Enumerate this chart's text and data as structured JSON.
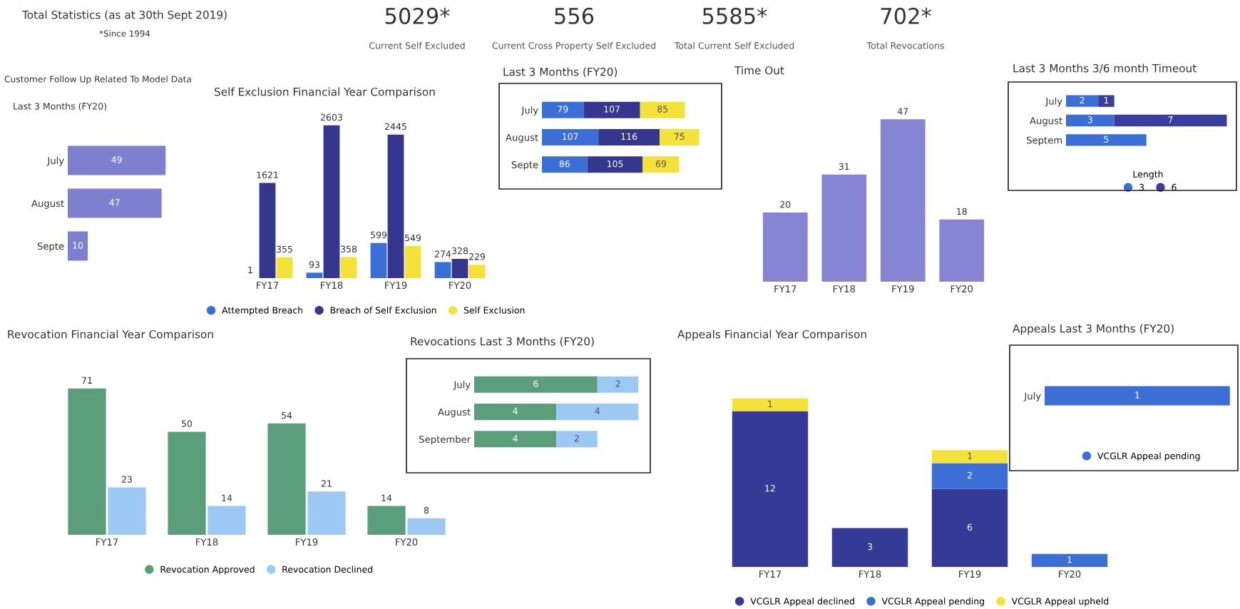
{
  "chart_data": [
    {
      "type": "other",
      "title": "Total Statistics (as at 30th Sept 2019)",
      "annotations": [
        "*Since 1994"
      ],
      "categories": [
        "Current Self Excluded",
        "Current Cross Property Self Excluded",
        "Total Current Self Excluded",
        "Total Revocations"
      ],
      "value_labels": [
        "5029*",
        "556",
        "5585*",
        "702*"
      ]
    },
    {
      "type": "bar",
      "orientation": "horizontal",
      "title": "Customer Follow Up Related To Model Data",
      "subtitle": "Last 3 Months (FY20)",
      "categories": [
        "July",
        "August",
        "Septe"
      ],
      "series": [
        {
          "color": "#7f7fcf",
          "values": [
            49,
            47,
            10
          ]
        }
      ],
      "data_labels": true
    },
    {
      "type": "bar",
      "title": "Self Exclusion Financial Year Comparison",
      "categories": [
        "FY17",
        "FY18",
        "FY19",
        "FY20"
      ],
      "series": [
        {
          "name": "Attempted Breach",
          "color": "#3b6fd6",
          "values": [
            1,
            93,
            599,
            274
          ]
        },
        {
          "name": "Breach of Self Exclusion",
          "color": "#35378f",
          "values": [
            1621,
            2603,
            2445,
            328
          ]
        },
        {
          "name": "Self Exclusion",
          "color": "#f4e23a",
          "values": [
            355,
            358,
            549,
            229
          ]
        }
      ],
      "data_labels": true,
      "legend": "bottom"
    },
    {
      "type": "bar",
      "orientation": "horizontal",
      "stacked": true,
      "title": "Last 3 Months (FY20)",
      "categories": [
        "July",
        "August",
        "Septe"
      ],
      "series": [
        {
          "color": "#3b6fd6",
          "values": [
            79,
            107,
            86
          ]
        },
        {
          "color": "#35378f",
          "values": [
            107,
            116,
            105
          ]
        },
        {
          "color": "#f4e23a",
          "values": [
            85,
            75,
            69
          ]
        }
      ],
      "data_labels": true
    },
    {
      "type": "bar",
      "title": "Time Out",
      "categories": [
        "FY17",
        "FY18",
        "FY19",
        "FY20"
      ],
      "series": [
        {
          "color": "#8884d4",
          "values": [
            20,
            31,
            47,
            18
          ]
        }
      ],
      "data_labels": true
    },
    {
      "type": "bar",
      "orientation": "horizontal",
      "stacked": true,
      "title": "Last 3 Months 3/6 month Timeout",
      "categories": [
        "July",
        "August",
        "Septem"
      ],
      "series": [
        {
          "name": "3",
          "color": "#3b6fd6",
          "values": [
            2,
            3,
            5
          ]
        },
        {
          "name": "6",
          "color": "#3a3d9c",
          "values": [
            1,
            7,
            null
          ]
        }
      ],
      "data_labels": true,
      "legend": "bottom",
      "legend_title": "Length"
    },
    {
      "type": "bar",
      "title": "Revocation Financial Year Comparison",
      "categories": [
        "FY17",
        "FY18",
        "FY19",
        "FY20"
      ],
      "series": [
        {
          "name": "Revocation Approved",
          "color": "#5a9e7c",
          "values": [
            71,
            50,
            54,
            14
          ]
        },
        {
          "name": "Revocation Declined",
          "color": "#9cc8f4",
          "values": [
            23,
            14,
            21,
            8
          ]
        }
      ],
      "data_labels": true,
      "legend": "bottom"
    },
    {
      "type": "bar",
      "orientation": "horizontal",
      "stacked": true,
      "title": "Revocations Last 3 Months (FY20)",
      "categories": [
        "July",
        "August",
        "September"
      ],
      "series": [
        {
          "color": "#5a9e7c",
          "values": [
            6,
            4,
            4
          ]
        },
        {
          "color": "#9cc8f4",
          "values": [
            2,
            4,
            2
          ]
        }
      ],
      "data_labels": true
    },
    {
      "type": "bar",
      "stacked": true,
      "title": "Appeals Financial Year Comparison",
      "categories": [
        "FY17",
        "FY18",
        "FY19",
        "FY20"
      ],
      "series": [
        {
          "name": "VCGLR Appeal declined",
          "color": "#353a96",
          "values": [
            12,
            3,
            6,
            null
          ]
        },
        {
          "name": "VCGLR Appeal pending",
          "color": "#3b6fd6",
          "values": [
            null,
            null,
            2,
            1
          ]
        },
        {
          "name": "VCGLR Appeal upheld",
          "color": "#f4e23a",
          "values": [
            1,
            null,
            1,
            null
          ]
        }
      ],
      "data_labels": true,
      "legend": "bottom"
    },
    {
      "type": "bar",
      "orientation": "horizontal",
      "title": "Appeals Last 3 Months (FY20)",
      "categories": [
        "July"
      ],
      "series": [
        {
          "name": "VCGLR Appeal pending",
          "color": "#3b6fd6",
          "values": [
            1
          ]
        }
      ],
      "data_labels": true,
      "legend": "bottom"
    }
  ]
}
